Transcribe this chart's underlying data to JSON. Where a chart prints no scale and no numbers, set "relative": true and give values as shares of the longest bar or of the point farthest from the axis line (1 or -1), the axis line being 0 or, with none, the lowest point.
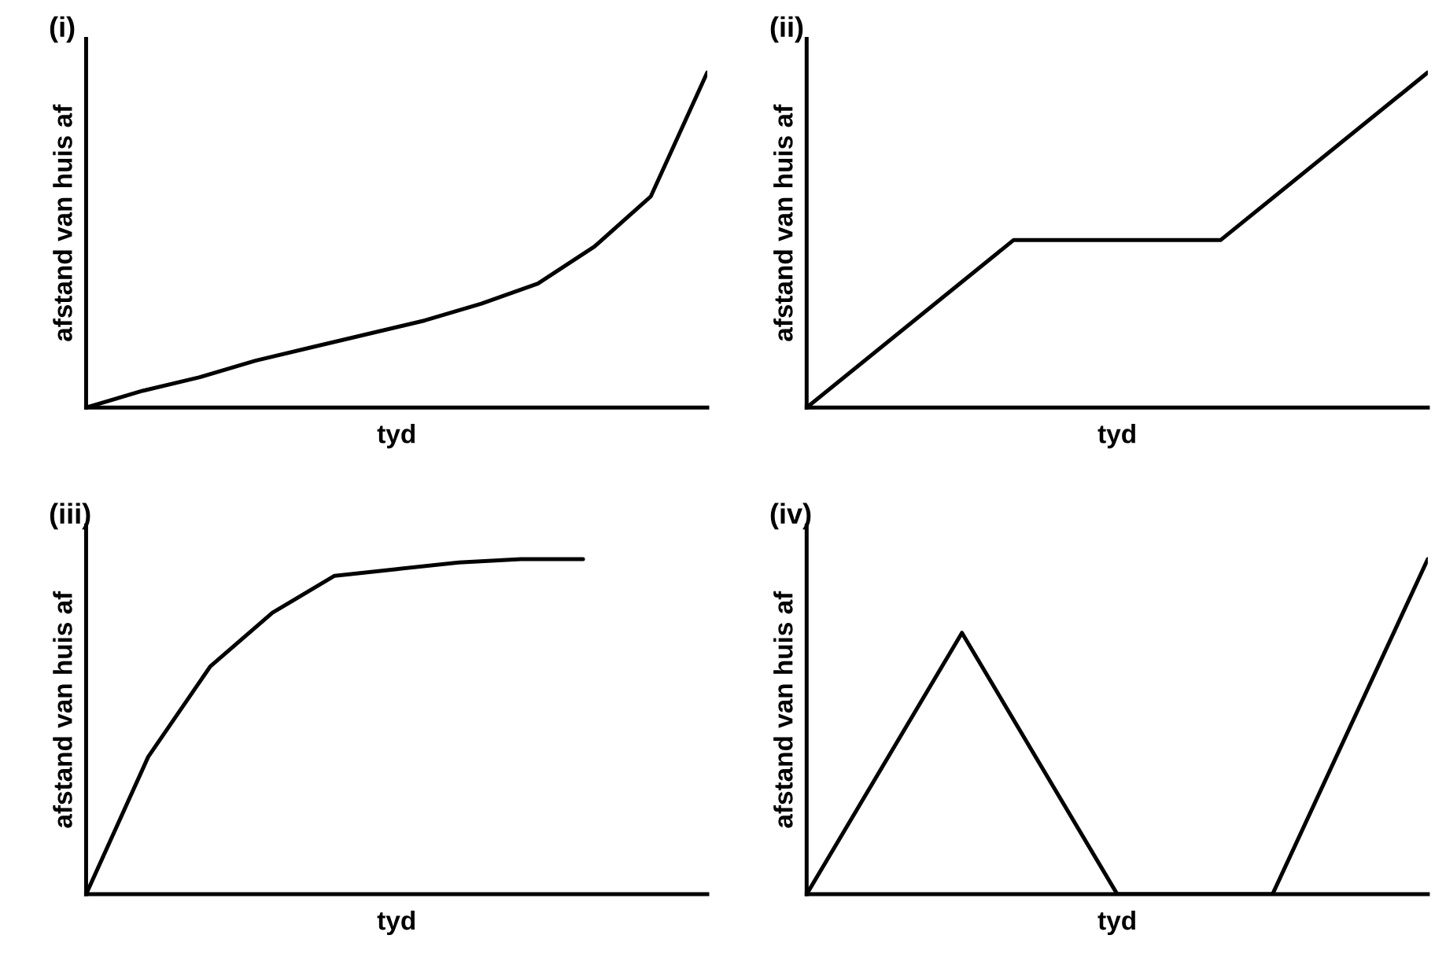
{
  "chart_data": [
    {
      "type": "line",
      "title": "(i)",
      "xlabel": "tyd",
      "ylabel": "afstand van huis af",
      "relative": true,
      "categories": [
        null,
        null,
        null,
        null,
        null,
        null,
        null,
        null,
        null,
        null,
        null,
        null
      ],
      "series": [
        {
          "color": "#000000",
          "values": [
            0,
            0.05,
            0.09,
            0.14,
            0.18,
            0.22,
            0.26,
            0.31,
            0.37,
            0.48,
            0.63,
            1
          ]
        }
      ]
    },
    {
      "type": "line",
      "title": "(ii)",
      "xlabel": "tyd",
      "ylabel": "afstand van huis af",
      "relative": true,
      "categories": [
        null,
        null,
        null,
        null
      ],
      "series": [
        {
          "color": "#000000",
          "values": [
            0,
            0.5,
            0.5,
            1
          ]
        }
      ]
    },
    {
      "type": "line",
      "title": "(iii)",
      "xlabel": "tyd",
      "ylabel": "afstand van huis af",
      "relative": true,
      "categories": [
        null,
        null,
        null,
        null,
        null,
        null,
        null,
        null,
        null,
        null,
        null
      ],
      "series": [
        {
          "color": "#000000",
          "values": [
            0,
            0.41,
            0.68,
            0.84,
            0.95,
            0.97,
            0.99,
            1,
            1,
            null,
            null
          ]
        }
      ]
    },
    {
      "type": "line",
      "title": "(iv)",
      "xlabel": "tyd",
      "ylabel": "afstand van huis af",
      "relative": true,
      "categories": [
        null,
        null,
        null,
        null,
        null
      ],
      "series": [
        {
          "color": "#000000",
          "values": [
            0,
            0.78,
            0,
            0,
            1
          ]
        }
      ]
    }
  ]
}
